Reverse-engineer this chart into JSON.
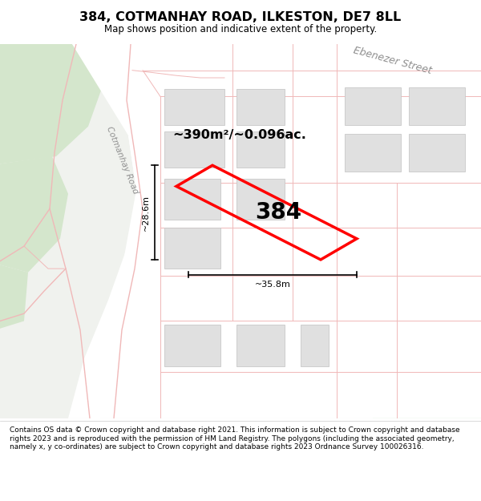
{
  "title": "384, COTMANHAY ROAD, ILKESTON, DE7 8LL",
  "subtitle": "Map shows position and indicative extent of the property.",
  "footer": "Contains OS data © Crown copyright and database right 2021. This information is subject to Crown copyright and database rights 2023 and is reproduced with the permission of HM Land Registry. The polygons (including the associated geometry, namely x, y co-ordinates) are subject to Crown copyright and database rights 2023 Ordnance Survey 100026316.",
  "bg_color": "#f0f2ee",
  "area_label": "~390m²/~0.096ac.",
  "property_number": "384",
  "width_label": "~35.8m",
  "height_label": "~28.6m",
  "street_label_1": "Ebenezer Street",
  "street_label_2": "Cotmanhay Road",
  "highlight_color": "#ff0000",
  "road_color": "#f0b8b8",
  "building_color": "#e0e0e0",
  "building_stroke": "#c8c8c8",
  "green_light": "#d4e6cc",
  "green_dark": "#b8d4b0",
  "white": "#ffffff"
}
